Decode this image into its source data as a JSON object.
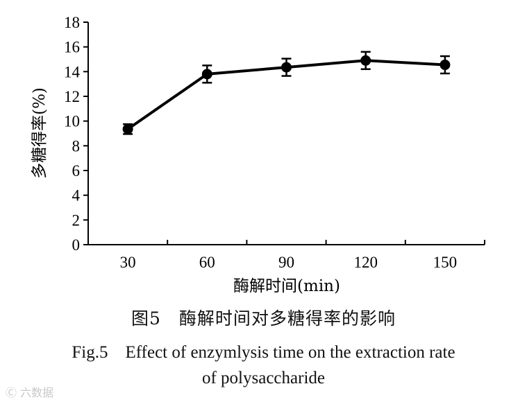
{
  "chart_data": {
    "type": "line",
    "title": "",
    "xlabel": "酶解时间(min)",
    "ylabel": "多糖得率(%)",
    "categories": [
      "30",
      "60",
      "90",
      "120",
      "150"
    ],
    "x": [
      30,
      60,
      90,
      120,
      150
    ],
    "xlim": [
      15,
      165
    ],
    "ylim": [
      0,
      18
    ],
    "yticks": [
      0,
      2,
      4,
      6,
      8,
      10,
      12,
      14,
      16,
      18
    ],
    "grid": false,
    "series": [
      {
        "name": "多糖得率",
        "values": [
          9.35,
          13.8,
          14.35,
          14.9,
          14.55
        ],
        "errors": [
          0.4,
          0.7,
          0.7,
          0.7,
          0.7
        ]
      }
    ],
    "line_color": "#000000"
  },
  "caption": {
    "cn": "图5　酶解时间对多糖得率的影响",
    "en_line1": "Fig.5　Effect of enzymlysis time on the extraction rate",
    "en_line2": "of polysaccharide"
  },
  "watermark": "Ⓒ 六数据"
}
